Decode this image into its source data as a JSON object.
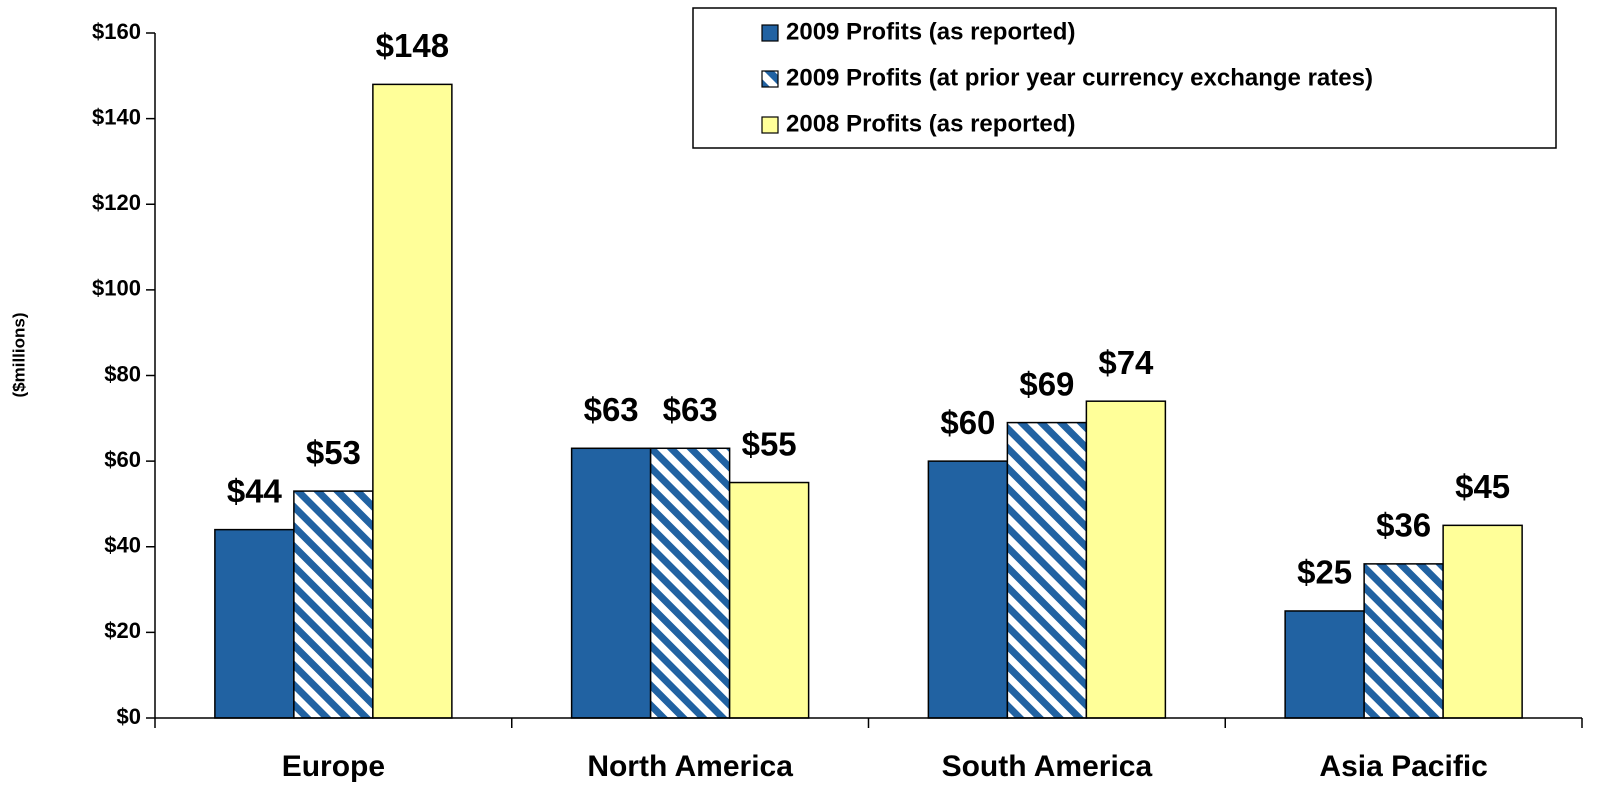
{
  "chart_data": {
    "type": "bar",
    "y_label": "($millions)",
    "categories": [
      "Europe",
      "North America",
      "South America",
      "Asia Pacific"
    ],
    "series": [
      {
        "name": "2009 Profits (as reported)",
        "color": "#2162a2",
        "hatch": false,
        "values": [
          44,
          63,
          60,
          25
        ],
        "value_labels": [
          "$44",
          "$63",
          "$60",
          "$25"
        ]
      },
      {
        "name": "2009 Profits (at prior year currency exchange rates)",
        "color": "#2162a2",
        "hatch": true,
        "values": [
          53,
          63,
          69,
          36
        ],
        "value_labels": [
          "$53",
          "$63",
          "$69",
          "$36"
        ]
      },
      {
        "name": "2008 Profits (as reported)",
        "color": "#ffff99",
        "hatch": false,
        "values": [
          148,
          55,
          74,
          45
        ],
        "value_labels": [
          "$148",
          "$55",
          "$74",
          "$45"
        ]
      }
    ],
    "ylim": [
      0,
      160
    ],
    "yticks": [
      {
        "value": 0,
        "label": "$0"
      },
      {
        "value": 20,
        "label": "$20"
      },
      {
        "value": 40,
        "label": "$40"
      },
      {
        "value": 60,
        "label": "$60"
      },
      {
        "value": 80,
        "label": "$80"
      },
      {
        "value": 100,
        "label": "$100"
      },
      {
        "value": 120,
        "label": "$120"
      },
      {
        "value": 140,
        "label": "$140"
      },
      {
        "value": 160,
        "label": "$160"
      }
    ],
    "grid": false,
    "legend": "top-right"
  }
}
